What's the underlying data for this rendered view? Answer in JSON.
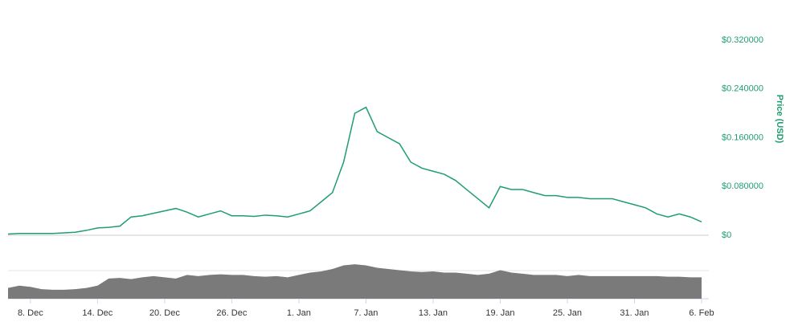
{
  "chart_data": {
    "type": "line",
    "y_axis_label": "Price (USD)",
    "categories": [
      null,
      null,
      "8. Dec",
      null,
      null,
      null,
      null,
      null,
      "14. Dec",
      null,
      null,
      null,
      null,
      null,
      "20. Dec",
      null,
      null,
      null,
      null,
      null,
      "26. Dec",
      null,
      null,
      null,
      null,
      null,
      "1. Jan",
      null,
      null,
      null,
      null,
      null,
      "7. Jan",
      null,
      null,
      null,
      null,
      null,
      "13. Jan",
      null,
      null,
      null,
      null,
      null,
      "19. Jan",
      null,
      null,
      null,
      null,
      null,
      "25. Jan",
      null,
      null,
      null,
      null,
      null,
      "31. Jan",
      null,
      null,
      null,
      null,
      null,
      "6. Feb"
    ],
    "values": [
      0.002,
      0.003,
      0.003,
      0.003,
      0.003,
      0.004,
      0.005,
      0.008,
      0.012,
      0.013,
      0.015,
      0.03,
      0.032,
      0.036,
      0.04,
      0.044,
      0.038,
      0.03,
      0.035,
      0.04,
      0.032,
      0.032,
      0.031,
      0.033,
      0.032,
      0.03,
      0.035,
      0.04,
      0.055,
      0.07,
      0.12,
      0.2,
      0.21,
      0.17,
      0.16,
      0.15,
      0.12,
      0.11,
      0.105,
      0.1,
      0.09,
      0.075,
      0.06,
      0.045,
      0.08,
      0.075,
      0.075,
      0.07,
      0.065,
      0.065,
      0.062,
      0.062,
      0.06,
      0.06,
      0.06,
      0.055,
      0.05,
      0.045,
      0.035,
      0.03,
      0.035,
      0.03,
      0.022
    ],
    "color": "#1f9e6e",
    "ylim": [
      0,
      0.32
    ],
    "yticks": [
      {
        "value": 0,
        "label": "$0"
      },
      {
        "value": 0.08,
        "label": "$0.080000"
      },
      {
        "value": 0.16,
        "label": "$0.160000"
      },
      {
        "value": 0.24,
        "label": "$0.240000"
      },
      {
        "value": 0.32,
        "label": "$0.320000"
      }
    ],
    "grid": true,
    "volume": {
      "color": "#7a7a7a",
      "ylim": [
        0,
        100
      ],
      "values": [
        18,
        22,
        20,
        16,
        15,
        15,
        16,
        18,
        22,
        34,
        35,
        33,
        36,
        38,
        36,
        34,
        40,
        38,
        40,
        41,
        40,
        40,
        38,
        37,
        38,
        36,
        40,
        44,
        46,
        50,
        56,
        58,
        56,
        52,
        50,
        48,
        46,
        45,
        46,
        44,
        44,
        42,
        40,
        42,
        48,
        44,
        42,
        40,
        40,
        40,
        38,
        40,
        38,
        38,
        38,
        38,
        38,
        38,
        38,
        37,
        37,
        36,
        36
      ]
    }
  }
}
